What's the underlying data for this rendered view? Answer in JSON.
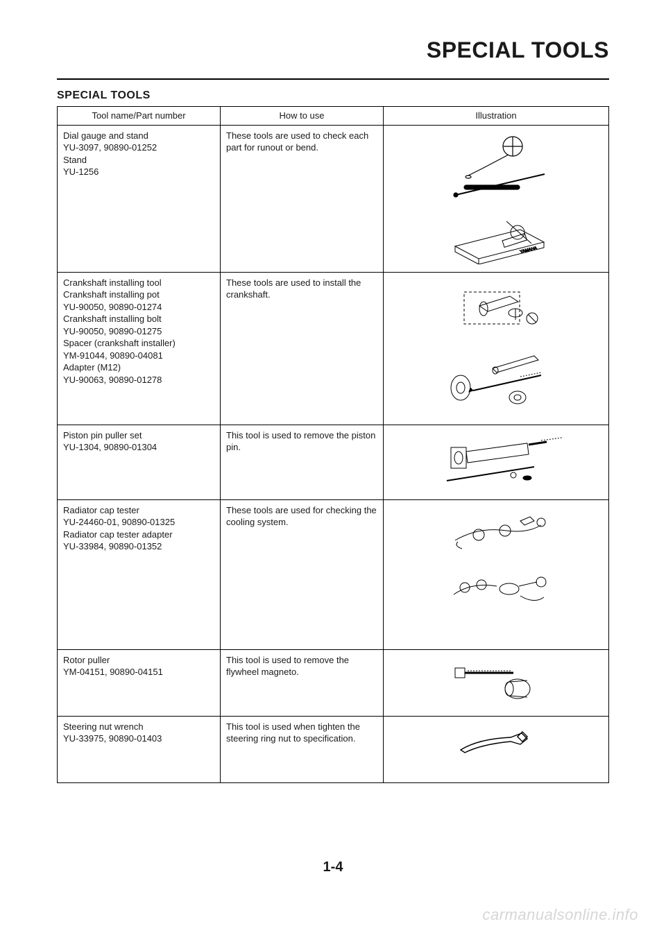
{
  "page_title": "SPECIAL TOOLS",
  "section_heading": "SPECIAL TOOLS",
  "page_number": "1-4",
  "watermark": "carmanualsonline.info",
  "table": {
    "headers": {
      "col1": "Tool name/Part number",
      "col2": "How to use",
      "col3": "Illustration"
    },
    "rows": [
      {
        "tool": "Dial gauge and stand\nYU-3097, 90890-01252\nStand\nYU-1256",
        "use": "These tools are used to check each part for runout or bend.",
        "illustration_height": 190,
        "svgs": [
          "<svg width='160' height='96' viewBox='0 0 160 96'><g stroke='#000' stroke-width='1.2' fill='none'><circle cx='104' cy='22' r='14'/><line x1='104' y1='8' x2='104' y2='36'/><line x1='90' y1='22' x2='118' y2='22'/><line x1='98' y1='34' x2='60' y2='54'/><path d='M60 54 l-20 10'/><ellipse cx='40' cy='66' rx='4' ry='2'/><rect x='34' y='78' width='80' height='6' rx='3' fill='#000'/><line x1='22' y1='92' x2='150' y2='62' stroke-width='2'/><circle cx='22' cy='92' r='3' fill='#000'/></g></svg>",
          "<svg width='170' height='86' viewBox='0 0 170 86'><g stroke='#000' stroke-width='1' fill='none'><path d='M26 60 L120 36 L154 54 L60 78 Z'/><path d='M26 60 L26 68 L60 86 L60 78'/><path d='M60 78 L60 86 L154 62 L154 54'/><circle cx='116' cy='40' r='10'/><line x1='100' y1='24' x2='136' y2='56'/><rect x='94' y='52' width='34' height='10' transform='rotate(-18 94 52)'/><text x='120' y='70' font-size='6' font-family='Arial' fill='#000' transform='rotate(-14 120 70)'>YAMAHA</text></g></svg>"
        ]
      },
      {
        "tool": "Crankshaft installing tool\nCrankshaft installing pot\nYU-90050, 90890-01274\nCrankshaft installing bolt\nYU-90050, 90890-01275\nSpacer (crankshaft installer)\nYM-91044, 90890-04081\nAdapter (M12)\nYU-90063, 90890-01278",
        "use": "These tools are used to install the crankshaft.",
        "illustration_height": 200,
        "svgs": [
          "<svg width='160' height='90' viewBox='0 0 160 90'><g stroke='#000' stroke-width='1' fill='none'><rect x='34' y='20' width='80' height='46' stroke-dasharray='4 3'/><path d='M56 40 L100 26 L112 34 L68 48 Z'/><ellipse cx='62' cy='44' rx='6' ry='10'/><path d='M98 50 a10 6 0 1 0 20 0 a10 6 0 1 0 -20 0'/><line x1='108' y1='44' x2='108' y2='60'/><circle cx='132' cy='58' r='8'/><line x1='126' y1='52' x2='138' y2='64'/></g></svg>",
          "<svg width='170' height='90' viewBox='0 0 170 90'><g stroke='#000' stroke-width='1' fill='none'><ellipse cx='34' cy='58' rx='14' ry='18'/><ellipse cx='34' cy='58' rx='6' ry='8'/><path d='M80 30 L140 12 L146 18 L86 36 Z'/><ellipse cx='84' cy='33' rx='4' ry='5'/><line x1='52' y1='62' x2='150' y2='40' stroke-width='2'/><path d='M52 62 l-6 2 l2 -6 z' fill='#000'/><path d='M120 42 l30 -6' stroke-dasharray='2 2'/><ellipse cx='116' cy='72' rx='12' ry='9'/><ellipse cx='116' cy='72' rx='5' ry='4'/></g></svg>"
        ]
      },
      {
        "tool": "Piston pin puller set\nYU-1304, 90890-01304",
        "use": "This tool is used to remove the piston pin.",
        "illustration_height": 90,
        "svgs": [
          "<svg width='190' height='82' viewBox='0 0 190 82'><g stroke='#000' stroke-width='1' fill='none'><rect x='30' y='24' width='22' height='30'/><ellipse cx='41' cy='39' rx='6' ry='9'/><path d='M52 30 L140 18 L142 34 L54 46 Z'/><line x1='142' y1='20' x2='168' y2='16' stroke-width='3'/><path d='M160 14 l30 -4' stroke-width='1' stroke-dasharray='2 2'/><line x1='24' y1='72' x2='150' y2='52' stroke-width='2'/><circle cx='120' cy='64' r='4'/><ellipse cx='140' cy='68' rx='6' ry='3' fill='#000'/></g></svg>"
        ]
      },
      {
        "tool": "Radiator cap tester\nYU-24460-01, 90890-01325\nRadiator cap tester adapter\nYU-33984, 90890-01352",
        "use": "These tools are used for checking the cooling system.",
        "illustration_height": 190,
        "svgs": [
          "<svg width='170' height='70' viewBox='0 0 170 70'><g stroke='#000' stroke-width='1' fill='none'><path d='M26 50 Q60 30 100 36 Q130 40 150 28'/><circle cx='60' cy='42' r='8'/><circle cx='98' cy='36' r='8'/><path d='M120 22 l14 -6 l6 6 l-14 6 z'/><circle cx='150' cy='24' r='6'/><path d='M30 52 q-6 6 6 10'/></g></svg>",
          "<svg width='170' height='70' viewBox='0 0 170 70'><g stroke='#000' stroke-width='1' fill='none'><path d='M24 48 Q50 30 86 36'/><circle cx='40' cy='38' r='7'/><circle cx='64' cy='34' r='7'/><ellipse cx='104' cy='40' rx='14' ry='8'/><path d='M118 36 l26 -6'/><circle cx='150' cy='30' r='7'/><path d='M120 50 q20 12 34 2'/></g></svg>"
        ]
      },
      {
        "tool": "Rotor puller\nYM-04151, 90890-04151",
        "use": "This tool is used to remove the flywheel magneto.",
        "illustration_height": 80,
        "svgs": [
          "<svg width='170' height='70' viewBox='0 0 170 70'><g stroke='#000' stroke-width='1' fill='none'><rect x='26' y='18' width='14' height='14'/><line x1='40' y1='25' x2='110' y2='25' stroke-width='3'/><path d='M44 22 h62' stroke-dasharray='2 2'/><ellipse cx='116' cy='48' rx='18' ry='14'/><ellipse cx='104' cy='48' rx='6' ry='10'/><line x1='104' y1='38' x2='130' y2='36'/><line x1='104' y1='58' x2='130' y2='60'/></g></svg>"
        ]
      },
      {
        "tool": "Steering nut wrench\nYU-33975, 90890-01403",
        "use": "This tool is used when tighten the steering ring nut to specification.",
        "illustration_height": 70,
        "svgs": [
          "<svg width='150' height='56' viewBox='0 0 150 56'><g stroke='#000' stroke-width='1.4' fill='none'><path d='M24 40 Q50 24 96 22 L112 16 L120 24 L110 32 L96 28 Q54 32 30 44 Z'/><rect x='108' y='16' width='10' height='10' transform='rotate(45 113 21)'/></g></svg>"
        ]
      }
    ]
  }
}
